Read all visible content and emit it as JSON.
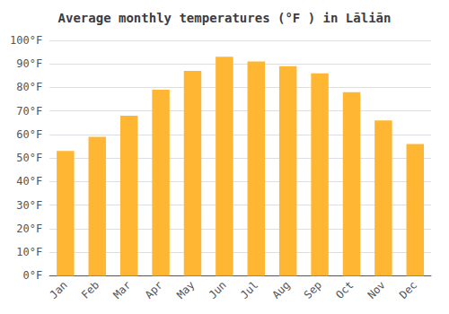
{
  "chart_data": {
    "type": "bar",
    "title": "Average monthly temperatures (°F ) in Lāliān",
    "categories": [
      "Jan",
      "Feb",
      "Mar",
      "Apr",
      "May",
      "Jun",
      "Jul",
      "Aug",
      "Sep",
      "Oct",
      "Nov",
      "Dec"
    ],
    "values": [
      53,
      59,
      68,
      79,
      87,
      93,
      91,
      89,
      86,
      78,
      66,
      56
    ],
    "color": "#FFB733",
    "ylim": [
      0,
      100
    ],
    "yticks": [
      {
        "value": 0,
        "label": "0°F"
      },
      {
        "value": 10,
        "label": "10°F"
      },
      {
        "value": 20,
        "label": "20°F"
      },
      {
        "value": 30,
        "label": "30°F"
      },
      {
        "value": 40,
        "label": "40°F"
      },
      {
        "value": 50,
        "label": "50°F"
      },
      {
        "value": 60,
        "label": "60°F"
      },
      {
        "value": 70,
        "label": "70°F"
      },
      {
        "value": 80,
        "label": "80°F"
      },
      {
        "value": 90,
        "label": "90°F"
      },
      {
        "value": 100,
        "label": "100°F"
      }
    ],
    "grid": true
  }
}
